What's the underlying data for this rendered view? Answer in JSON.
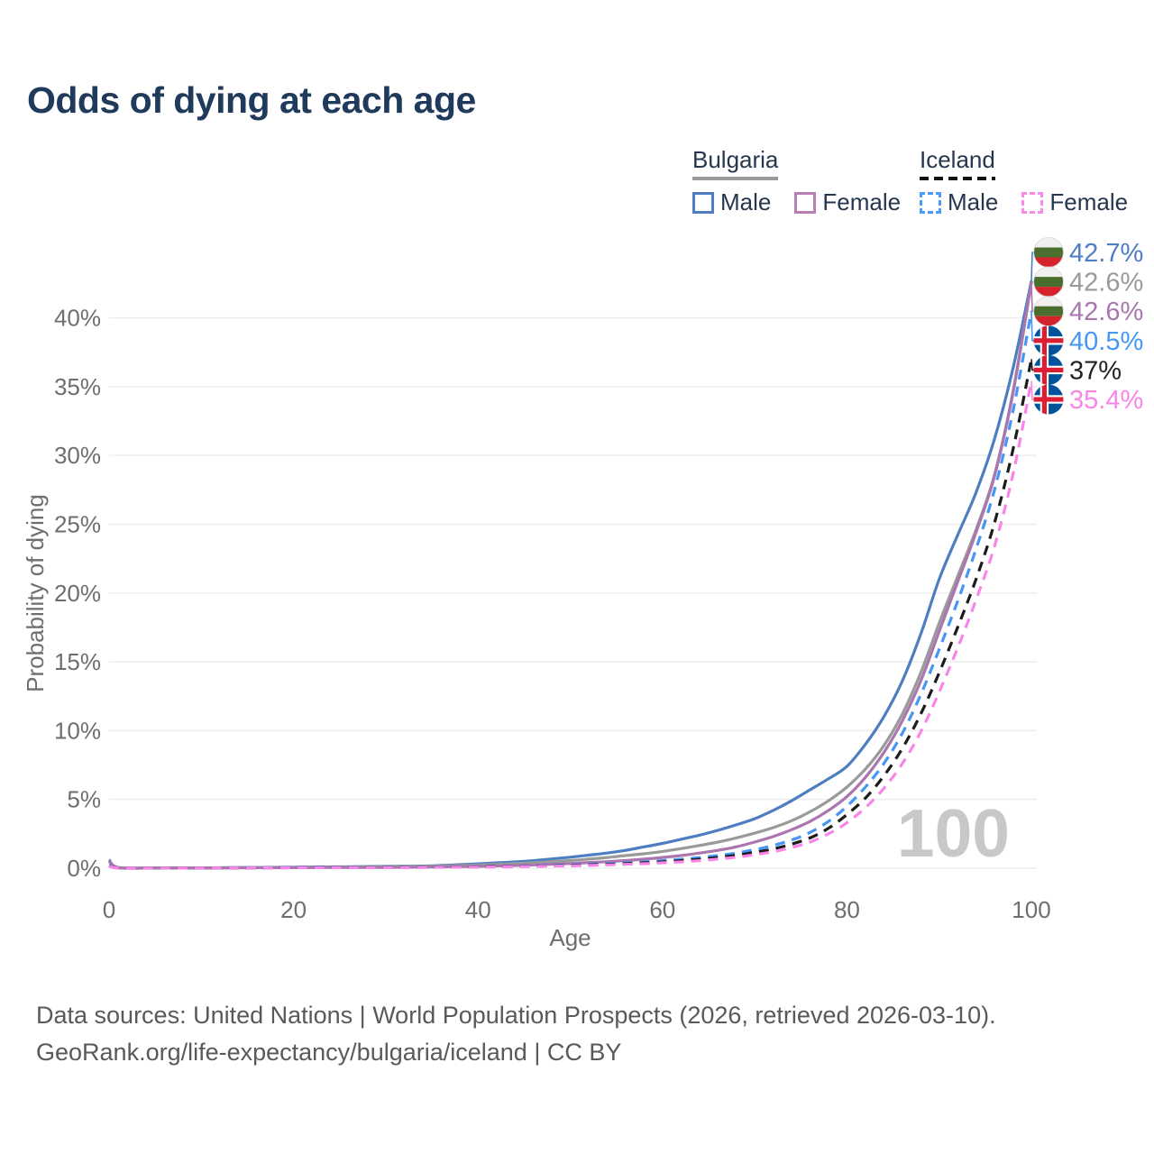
{
  "title": "Odds of dying at each age",
  "watermark": "100",
  "legend": {
    "groups": [
      {
        "country": "Bulgaria",
        "line_style": "solid",
        "line_color": "#9a9a9a",
        "items": [
          {
            "label": "Male",
            "color": "#4e7ec1",
            "dashed": false
          },
          {
            "label": "Female",
            "color": "#b77fb5",
            "dashed": false
          }
        ]
      },
      {
        "country": "Iceland",
        "line_style": "dashed",
        "line_color": "#111111",
        "items": [
          {
            "label": "Male",
            "color": "#4a9df8",
            "dashed": true
          },
          {
            "label": "Female",
            "color": "#fb8ae8",
            "dashed": true
          }
        ]
      }
    ]
  },
  "chart_data": {
    "type": "line",
    "title": "Odds of dying at each age",
    "xlabel": "Age",
    "ylabel": "Probability of dying",
    "xlim": [
      0,
      100
    ],
    "ylim_pct": [
      0,
      44
    ],
    "grid": true,
    "legend_position": "top-right",
    "x_ticks": [
      0,
      20,
      40,
      60,
      80,
      100
    ],
    "y_ticks": [
      {
        "value": 0,
        "label": "0%"
      },
      {
        "value": 5,
        "label": "5%"
      },
      {
        "value": 10,
        "label": "10%"
      },
      {
        "value": 15,
        "label": "15%"
      },
      {
        "value": 20,
        "label": "20%"
      },
      {
        "value": 25,
        "label": "25%"
      },
      {
        "value": 30,
        "label": "30%"
      },
      {
        "value": 35,
        "label": "35%"
      },
      {
        "value": 40,
        "label": "40%"
      }
    ],
    "x": [
      0,
      1,
      5,
      10,
      15,
      20,
      25,
      30,
      35,
      40,
      45,
      50,
      52,
      54,
      56,
      58,
      60,
      62,
      64,
      66,
      68,
      70,
      72,
      74,
      76,
      78,
      80,
      82,
      84,
      86,
      88,
      90,
      92,
      94,
      96,
      98,
      100
    ],
    "series": [
      {
        "id": "bulgaria_male",
        "name": "Bulgaria Male",
        "color": "#4e7ec1",
        "dashed": false,
        "values_pct": [
          0.62,
          0.05,
          0.02,
          0.02,
          0.05,
          0.08,
          0.1,
          0.13,
          0.18,
          0.32,
          0.5,
          0.8,
          0.95,
          1.1,
          1.3,
          1.55,
          1.8,
          2.1,
          2.4,
          2.75,
          3.15,
          3.6,
          4.2,
          4.9,
          5.7,
          6.5,
          7.4,
          9.0,
          11.0,
          13.6,
          17.0,
          21.0,
          24.2,
          27.3,
          31.2,
          36.3,
          42.7
        ]
      },
      {
        "id": "bulgaria_both",
        "name": "Bulgaria (both sexes)",
        "color": "#9a9a9a",
        "dashed": false,
        "values_pct": [
          0.56,
          0.04,
          0.02,
          0.02,
          0.04,
          0.06,
          0.08,
          0.1,
          0.14,
          0.23,
          0.36,
          0.56,
          0.66,
          0.78,
          0.92,
          1.05,
          1.22,
          1.42,
          1.65,
          1.9,
          2.2,
          2.55,
          2.95,
          3.45,
          4.1,
          4.9,
          5.9,
          7.2,
          8.9,
          11.2,
          14.2,
          17.8,
          21.2,
          24.6,
          28.6,
          34.6,
          42.6
        ]
      },
      {
        "id": "bulgaria_female",
        "name": "Bulgaria Female",
        "color": "#ab75af",
        "dashed": false,
        "values_pct": [
          0.5,
          0.04,
          0.015,
          0.015,
          0.03,
          0.04,
          0.05,
          0.06,
          0.09,
          0.14,
          0.22,
          0.34,
          0.41,
          0.48,
          0.56,
          0.66,
          0.78,
          0.92,
          1.1,
          1.3,
          1.55,
          1.9,
          2.3,
          2.8,
          3.4,
          4.2,
          5.2,
          6.6,
          8.4,
          10.7,
          13.6,
          17.2,
          20.8,
          24.4,
          28.5,
          34.5,
          42.6
        ]
      },
      {
        "id": "iceland_male",
        "name": "Iceland Male",
        "color": "#4596f5",
        "dashed": true,
        "values_pct": [
          0.2,
          0.02,
          0.01,
          0.01,
          0.03,
          0.05,
          0.06,
          0.07,
          0.08,
          0.12,
          0.16,
          0.24,
          0.28,
          0.33,
          0.39,
          0.46,
          0.55,
          0.65,
          0.77,
          0.92,
          1.1,
          1.35,
          1.65,
          2.05,
          2.6,
          3.4,
          4.5,
          5.9,
          7.6,
          9.8,
          12.6,
          15.9,
          19.4,
          23.2,
          27.5,
          33.2,
          40.5
        ]
      },
      {
        "id": "iceland_both",
        "name": "Iceland (both sexes)",
        "color": "#1c1c1c",
        "dashed": true,
        "values_pct": [
          0.18,
          0.02,
          0.01,
          0.01,
          0.02,
          0.04,
          0.05,
          0.06,
          0.07,
          0.1,
          0.14,
          0.2,
          0.24,
          0.28,
          0.33,
          0.39,
          0.46,
          0.55,
          0.65,
          0.78,
          0.94,
          1.15,
          1.4,
          1.75,
          2.2,
          2.9,
          3.9,
          5.1,
          6.7,
          8.7,
          11.2,
          14.2,
          17.5,
          21.0,
          25.1,
          30.4,
          37.0
        ]
      },
      {
        "id": "iceland_female",
        "name": "Iceland Female",
        "color": "#fa85e9",
        "dashed": true,
        "values_pct": [
          0.15,
          0.02,
          0.01,
          0.01,
          0.02,
          0.03,
          0.04,
          0.04,
          0.06,
          0.08,
          0.12,
          0.17,
          0.2,
          0.24,
          0.28,
          0.33,
          0.39,
          0.46,
          0.55,
          0.66,
          0.8,
          0.98,
          1.2,
          1.5,
          1.9,
          2.5,
          3.3,
          4.4,
          5.8,
          7.6,
          9.9,
          12.8,
          16.0,
          19.5,
          23.4,
          28.6,
          35.4
        ]
      }
    ]
  },
  "endpoint_labels": [
    {
      "series": "bulgaria_male",
      "flag": "bulgaria",
      "value": "42.7%",
      "color": "#4e7ec1"
    },
    {
      "series": "bulgaria_both",
      "flag": "bulgaria",
      "value": "42.6%",
      "color": "#9a9a9a"
    },
    {
      "series": "bulgaria_female",
      "flag": "bulgaria",
      "value": "42.6%",
      "color": "#ab75af"
    },
    {
      "series": "iceland_male",
      "flag": "iceland",
      "value": "40.5%",
      "color": "#4596f5"
    },
    {
      "series": "iceland_both",
      "flag": "iceland",
      "value": "37%",
      "color": "#222222"
    },
    {
      "series": "iceland_female",
      "flag": "iceland",
      "value": "35.4%",
      "color": "#fa85e9"
    }
  ],
  "footer": {
    "line1": "Data sources: United Nations | World Population Prospects (2026, retrieved 2026-03-10).",
    "line2": "GeoRank.org/life-expectancy/bulgaria/iceland | CC BY"
  }
}
